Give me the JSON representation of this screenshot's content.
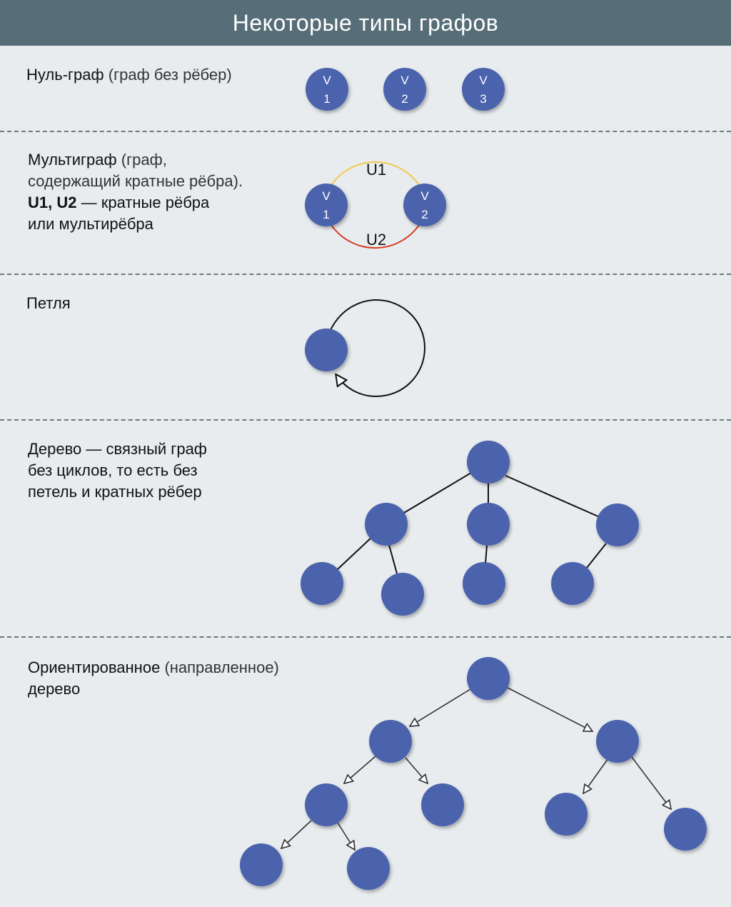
{
  "title": "Некоторые типы графов",
  "sections": {
    "null_graph": {
      "name": "Нуль-граф",
      "note": "(граф без рёбер)"
    },
    "multigraph": {
      "name": "Мультиграф",
      "note_line1": "(граф,",
      "note_line2": "содержащий кратные рёбра).",
      "edges_bold": "U1, U2",
      "edges_rest": "— кратные рёбра",
      "line4": "или мультирёбра"
    },
    "loop": {
      "name": "Петля"
    },
    "tree": {
      "line1": "Дерево — связный граф",
      "line2": "без циклов, то есть без",
      "line3": "петель и кратных рёбер"
    },
    "directed_tree": {
      "name": "Ориентированное",
      "note": "(направленное)",
      "line2": "дерево"
    }
  },
  "labels": {
    "v": "V",
    "one": "1",
    "two": "2",
    "three": "3",
    "u1": "U1",
    "u2": "U2"
  },
  "colors": {
    "header_bg": "#576e78",
    "background": "#e8ecef",
    "node": "#4c64ad",
    "edge_u1": "#f2c94c",
    "edge_u2": "#d73a1e"
  }
}
